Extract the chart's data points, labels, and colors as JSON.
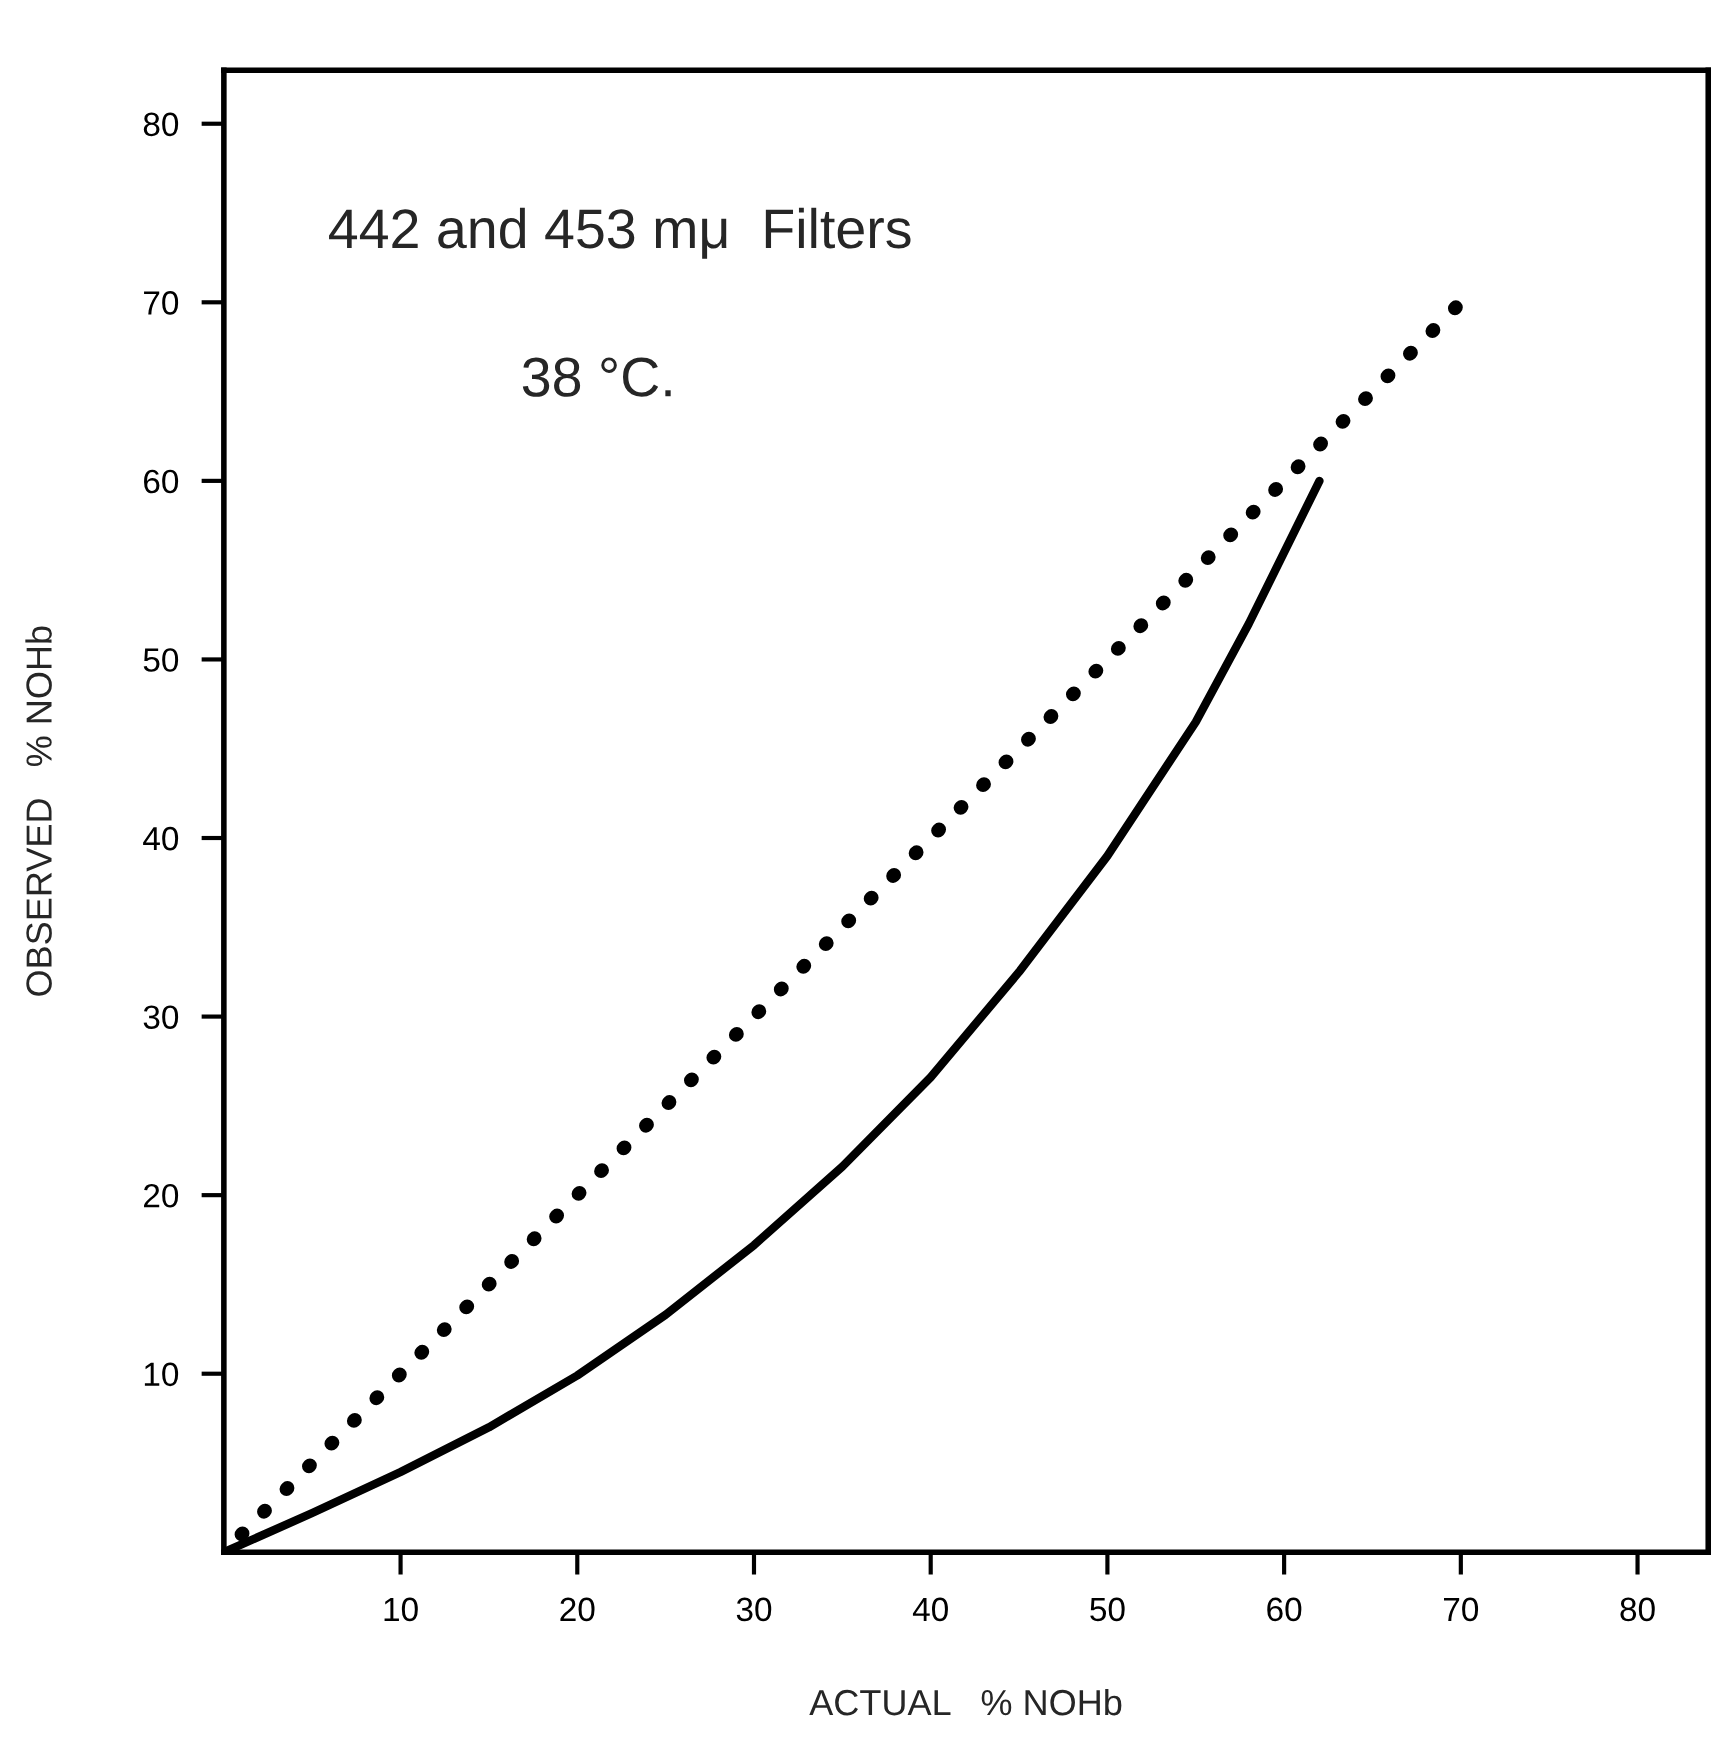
{
  "chart_data": {
    "type": "line",
    "xlabel": "ACTUAL   % NOHb",
    "ylabel": "OBSERVED   % NOHb",
    "annotations": [
      "442 and 453 mμ  Filters",
      "38 °C."
    ],
    "series": [
      {
        "color": "#000000",
        "line_style": "solid",
        "x": [
          0,
          5,
          10,
          15,
          20,
          25,
          30,
          35,
          40,
          45,
          50,
          55,
          58,
          62
        ],
        "values": [
          0,
          2.2,
          4.5,
          7,
          9.9,
          13.3,
          17.2,
          21.6,
          26.6,
          32.5,
          39,
          46.5,
          52,
          60
        ]
      },
      {
        "color": "#000000",
        "line_style": "dotted",
        "x": [
          1,
          70
        ],
        "values": [
          1,
          70
        ]
      }
    ],
    "xlim": [
      0,
      84
    ],
    "ylim": [
      0,
      83
    ],
    "xticks": [
      10,
      20,
      30,
      40,
      50,
      60,
      70,
      80
    ],
    "yticks": [
      10,
      20,
      30,
      40,
      50,
      60,
      70,
      80
    ],
    "grid": false,
    "legend": false,
    "marker": "none"
  }
}
